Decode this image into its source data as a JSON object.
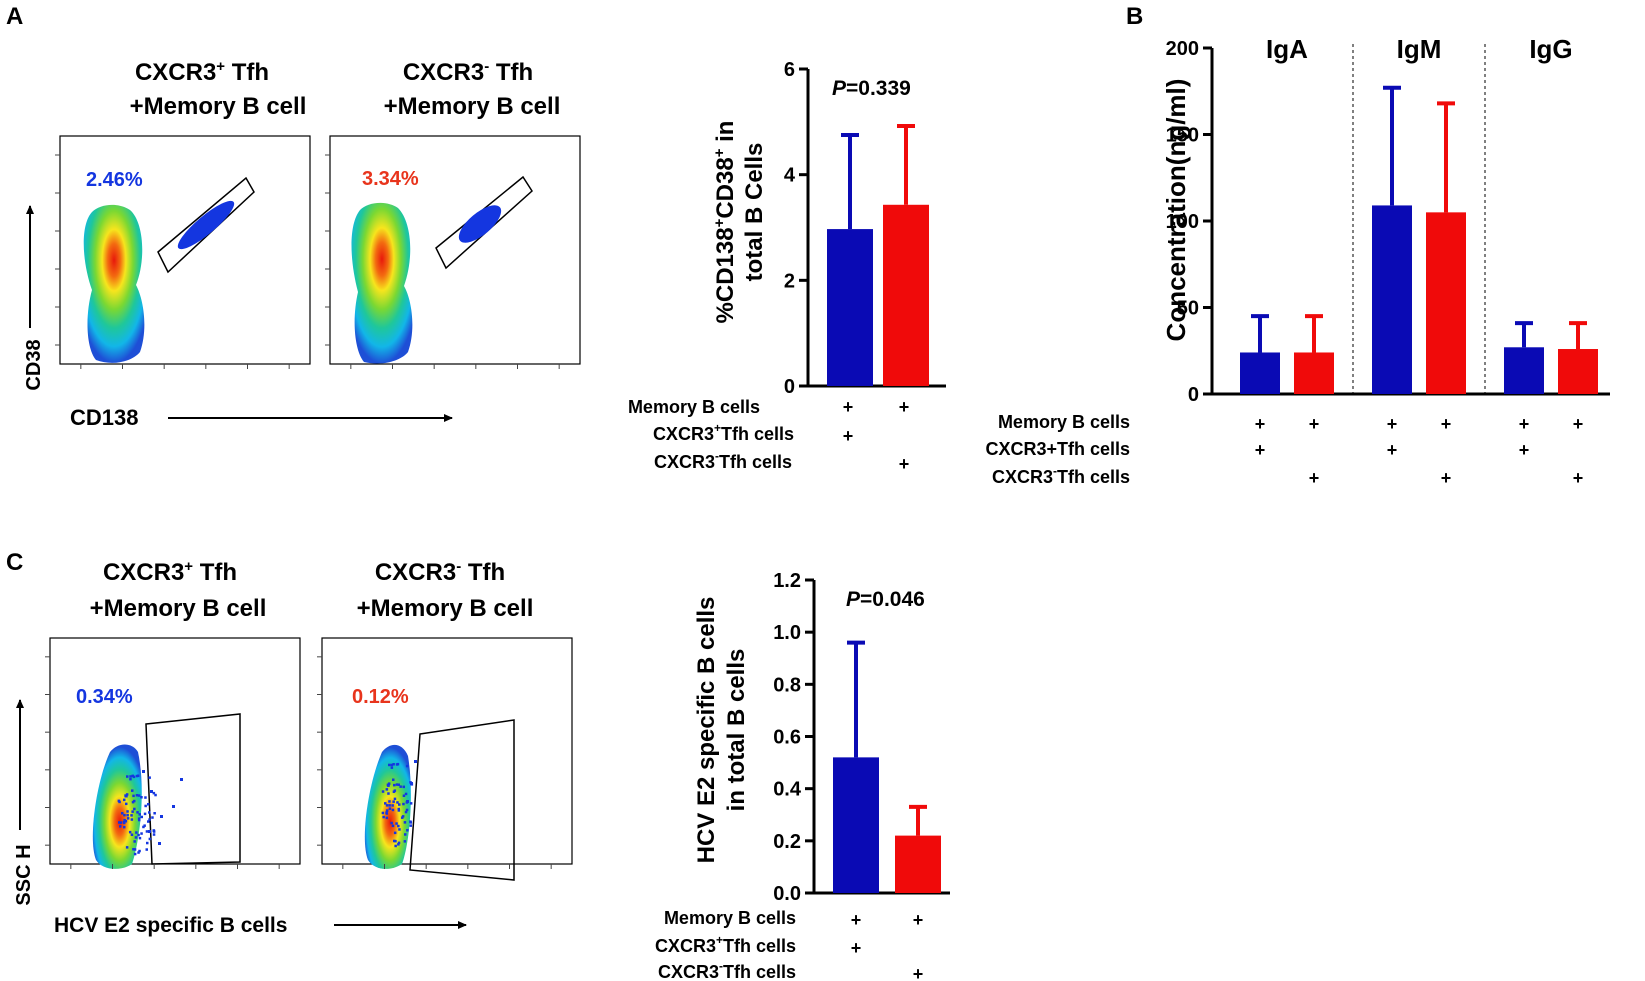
{
  "colors": {
    "blue": "#0A0AB4",
    "red": "#F00A0A",
    "black": "#000000",
    "pct_red": "#E8341C"
  },
  "panel_a": {
    "letter": "A",
    "flow": {
      "plot1_title_prefix": "CXCR3",
      "plot1_title_sup": "+",
      "plot1_title_suffix": " Tfh",
      "plot1_title_line2": "+Memory B cell",
      "plot1_percent": "2.46%",
      "plot2_title_prefix": "CXCR3",
      "plot2_title_sup": "-",
      "plot2_title_suffix": " Tfh",
      "plot2_title_line2": "+Memory B cell",
      "plot2_percent": "3.34%",
      "y_axis_label": "CD38",
      "x_axis_label": "CD138"
    },
    "conditions": {
      "row1": "Memory B cells",
      "row2_prefix": "CXCR3",
      "row2_sup": "+",
      "row2_suffix": "Tfh cells",
      "row3_prefix": "CXCR3",
      "row3_sup": "-",
      "row3_suffix": "Tfh cells",
      "plus": "+"
    }
  },
  "panel_b": {
    "letter": "B",
    "conditions": {
      "row1": "Memory B cells",
      "row2": "CXCR3+Tfh cells",
      "row3_prefix": "CXCR3",
      "row3_sup": "-",
      "row3_suffix": "Tfh cells",
      "plus": "+"
    }
  },
  "panel_c": {
    "letter": "C",
    "flow": {
      "plot1_title_prefix": "CXCR3",
      "plot1_title_sup": "+",
      "plot1_title_suffix": " Tfh",
      "plot1_title_line2": "+Memory B cell",
      "plot1_percent": "0.34%",
      "plot2_title_prefix": "CXCR3",
      "plot2_title_sup": "-",
      "plot2_title_suffix": " Tfh",
      "plot2_title_line2": "+Memory B cell",
      "plot2_percent": "0.12%",
      "y_axis_label": "SSC H",
      "x_axis_label": "HCV E2 specific B cells"
    },
    "conditions": {
      "row1": "Memory B cells",
      "row2_prefix": "CXCR3",
      "row2_sup": "+",
      "row2_suffix": "Tfh cells",
      "row3_prefix": "CXCR3",
      "row3_sup": "-",
      "row3_suffix": "Tfh cells",
      "plus": "+"
    }
  },
  "chart_data": [
    {
      "type": "bar",
      "panel": "A",
      "ylabel_line1_prefix": "%CD138",
      "ylabel_line1_sup1": "+",
      "ylabel_line1_mid": "CD38",
      "ylabel_line1_sup2": "+",
      "ylabel_line1_suffix": " in",
      "ylabel_line2": "total B Cells",
      "ylim": [
        0,
        6
      ],
      "yticks": [
        0,
        2,
        4,
        6
      ],
      "ytick_labels": [
        "0",
        "2",
        "4",
        "6"
      ],
      "annotation_p": "P",
      "annotation_value": "=0.339",
      "series": [
        {
          "name": "CXCR3+ Tfh",
          "value": 2.97,
          "error": 1.78,
          "color": "#0A0AB4"
        },
        {
          "name": "CXCR3- Tfh",
          "value": 3.43,
          "error": 1.49,
          "color": "#F00A0A"
        }
      ]
    },
    {
      "type": "bar",
      "panel": "B",
      "ylabel": "Concentration(ng/ml)",
      "ylim": [
        0,
        200
      ],
      "yticks": [
        0,
        50,
        100,
        150,
        200
      ],
      "ytick_labels": [
        "0",
        "50",
        "100",
        "150",
        "200"
      ],
      "groups": [
        "IgA",
        "IgM",
        "IgG"
      ],
      "series": [
        {
          "name": "CXCR3+ Tfh",
          "color": "#0A0AB4",
          "values": [
            24,
            109,
            27
          ],
          "errors": [
            21,
            68,
            14
          ]
        },
        {
          "name": "CXCR3- Tfh",
          "color": "#F00A0A",
          "values": [
            24,
            105,
            26
          ],
          "errors": [
            21,
            63,
            15
          ]
        }
      ]
    },
    {
      "type": "bar",
      "panel": "C",
      "ylabel_line1": "HCV E2 specific B cells",
      "ylabel_line2": "in total B cells",
      "ylim": [
        0,
        1.2
      ],
      "yticks": [
        0,
        0.2,
        0.4,
        0.6,
        0.8,
        1.0,
        1.2
      ],
      "ytick_labels": [
        "0.0",
        "0.2",
        "0.4",
        "0.6",
        "0.8",
        "1.0",
        "1.2"
      ],
      "annotation_p": "P",
      "annotation_value": "=0.046",
      "series": [
        {
          "name": "CXCR3+ Tfh",
          "value": 0.52,
          "error": 0.44,
          "color": "#0A0AB4"
        },
        {
          "name": "CXCR3- Tfh",
          "value": 0.22,
          "error": 0.11,
          "color": "#F00A0A"
        }
      ]
    }
  ]
}
